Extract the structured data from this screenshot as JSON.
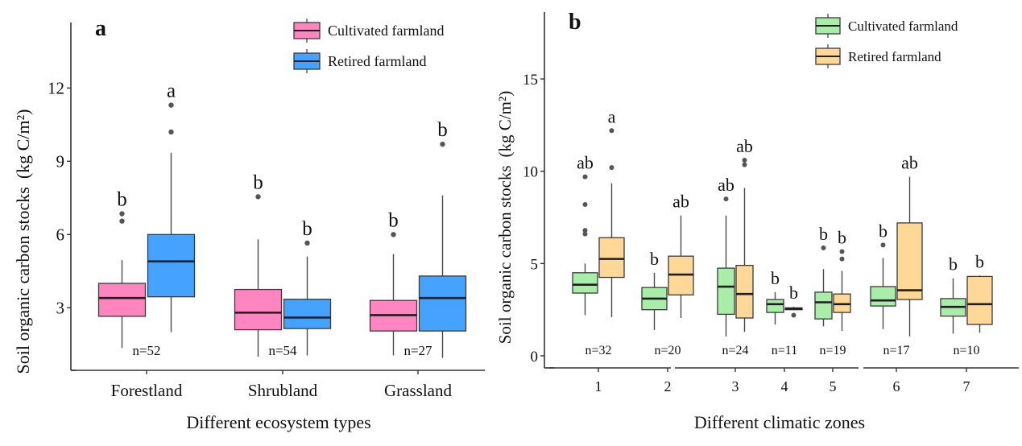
{
  "chart_data": [
    {
      "type": "boxplot",
      "panel_label": "a",
      "xlabel": "Different ecosystem types",
      "ylabel": "Soil organic carbon stocks",
      "ylabel_unit": "(kg C/m²)",
      "ylim": [
        0.5,
        15
      ],
      "yticks": [
        3,
        6,
        9,
        12
      ],
      "grid": false,
      "legend_position": "top-right",
      "series": [
        {
          "name": "Cultivated farmland",
          "color": "#FF85C0"
        },
        {
          "name": "Retired farmland",
          "color": "#45A3FF"
        }
      ],
      "categories": [
        "Forestland",
        "Shrubland",
        "Grassland"
      ],
      "groups": [
        {
          "category": "Forestland",
          "n_label": "n=52",
          "boxes": [
            {
              "series": 0,
              "whisker_low": 1.35,
              "q1": 2.65,
              "median": 3.4,
              "q3": 4.0,
              "whisker_high": 4.95,
              "outliers": [
                6.55,
                6.85
              ],
              "letter": "b"
            },
            {
              "series": 1,
              "whisker_low": 2.0,
              "q1": 3.45,
              "median": 4.9,
              "q3": 6.0,
              "whisker_high": 9.35,
              "outliers": [
                10.2,
                11.3
              ],
              "letter": "a"
            }
          ]
        },
        {
          "category": "Shrubland",
          "n_label": "n=54",
          "boxes": [
            {
              "series": 0,
              "whisker_low": 1.0,
              "q1": 2.1,
              "median": 2.8,
              "q3": 3.75,
              "whisker_high": 5.8,
              "outliers": [
                7.55
              ],
              "letter": "b"
            },
            {
              "series": 1,
              "whisker_low": 1.05,
              "q1": 2.15,
              "median": 2.6,
              "q3": 3.35,
              "whisker_high": 5.1,
              "outliers": [
                5.65
              ],
              "letter": "b"
            }
          ]
        },
        {
          "category": "Grassland",
          "n_label": "n=27",
          "boxes": [
            {
              "series": 0,
              "whisker_low": 1.05,
              "q1": 2.05,
              "median": 2.7,
              "q3": 3.3,
              "whisker_high": 5.2,
              "outliers": [
                6.0
              ],
              "letter": "b"
            },
            {
              "series": 1,
              "whisker_low": 0.95,
              "q1": 2.05,
              "median": 3.4,
              "q3": 4.3,
              "whisker_high": 7.6,
              "outliers": [
                9.7
              ],
              "letter": "b"
            }
          ]
        }
      ]
    },
    {
      "type": "boxplot",
      "panel_label": "b",
      "xlabel": "Different climatic zones",
      "ylabel": "Soil organic carbon stocks",
      "ylabel_unit": "(kg C/m²)",
      "ylim": [
        -0.7,
        18.5
      ],
      "yticks": [
        0,
        5,
        10,
        15
      ],
      "grid": false,
      "legend_position": "top-right",
      "series": [
        {
          "name": "Cultivated farmland",
          "color": "#A8EDA8"
        },
        {
          "name": "Retired farmland",
          "color": "#FFD898"
        }
      ],
      "categories": [
        "1",
        "2",
        "3",
        "4",
        "5",
        "6",
        "7"
      ],
      "axis_segments": [
        [
          "1",
          "2"
        ],
        [
          "3",
          "4",
          "5"
        ],
        [
          "6",
          "7"
        ]
      ],
      "groups": [
        {
          "category": "1",
          "n_label": "n=32",
          "boxes": [
            {
              "series": 0,
              "whisker_low": 2.2,
              "q1": 3.4,
              "median": 3.85,
              "q3": 4.5,
              "whisker_high": 5.0,
              "outliers": [
                6.6,
                6.8,
                8.2,
                9.7
              ],
              "letter": "ab"
            },
            {
              "series": 1,
              "whisker_low": 2.1,
              "q1": 4.25,
              "median": 5.25,
              "q3": 6.4,
              "whisker_high": 9.35,
              "outliers": [
                10.2,
                12.2
              ],
              "letter": "a"
            }
          ]
        },
        {
          "category": "2",
          "n_label": "n=20",
          "boxes": [
            {
              "series": 0,
              "whisker_low": 1.4,
              "q1": 2.5,
              "median": 3.1,
              "q3": 3.7,
              "whisker_high": 4.5,
              "outliers": [],
              "letter": "b"
            },
            {
              "series": 1,
              "whisker_low": 2.05,
              "q1": 3.3,
              "median": 4.4,
              "q3": 5.4,
              "whisker_high": 7.6,
              "outliers": [],
              "letter": "ab"
            }
          ]
        },
        {
          "category": "3",
          "n_label": "n=24",
          "boxes": [
            {
              "series": 0,
              "whisker_low": 1.05,
              "q1": 2.25,
              "median": 3.75,
              "q3": 4.75,
              "whisker_high": 7.6,
              "outliers": [
                8.5
              ],
              "letter": "ab"
            },
            {
              "series": 1,
              "whisker_low": 1.3,
              "q1": 2.05,
              "median": 3.35,
              "q3": 4.9,
              "whisker_high": 9.1,
              "outliers": [
                10.35,
                10.6
              ],
              "letter": "ab"
            }
          ]
        },
        {
          "category": "4",
          "n_label": "n=11",
          "boxes": [
            {
              "series": 0,
              "whisker_low": 1.7,
              "q1": 2.35,
              "median": 2.8,
              "q3": 3.05,
              "whisker_high": 3.45,
              "outliers": [],
              "letter": "b"
            },
            {
              "series": 1,
              "whisker_low": 2.5,
              "q1": 2.5,
              "median": 2.55,
              "q3": 2.6,
              "whisker_high": 2.65,
              "outliers": [
                2.2
              ],
              "letter": "b"
            }
          ]
        },
        {
          "category": "5",
          "n_label": "n=19",
          "boxes": [
            {
              "series": 0,
              "whisker_low": 1.6,
              "q1": 2.0,
              "median": 2.9,
              "q3": 3.45,
              "whisker_high": 4.7,
              "outliers": [
                5.85
              ],
              "letter": "b"
            },
            {
              "series": 1,
              "whisker_low": 1.35,
              "q1": 2.35,
              "median": 2.8,
              "q3": 3.35,
              "whisker_high": 4.6,
              "outliers": [
                5.25,
                5.65
              ],
              "letter": "b"
            }
          ]
        },
        {
          "category": "6",
          "n_label": "n=17",
          "boxes": [
            {
              "series": 0,
              "whisker_low": 1.45,
              "q1": 2.7,
              "median": 3.0,
              "q3": 3.75,
              "whisker_high": 5.3,
              "outliers": [
                6.0
              ],
              "letter": "b"
            },
            {
              "series": 1,
              "whisker_low": 1.05,
              "q1": 3.05,
              "median": 3.55,
              "q3": 7.2,
              "whisker_high": 9.7,
              "outliers": [],
              "letter": "ab"
            }
          ]
        },
        {
          "category": "7",
          "n_label": "n=10",
          "boxes": [
            {
              "series": 0,
              "whisker_low": 1.2,
              "q1": 2.15,
              "median": 2.65,
              "q3": 3.1,
              "whisker_high": 4.2,
              "outliers": [],
              "letter": "b"
            },
            {
              "series": 1,
              "whisker_low": 1.25,
              "q1": 1.7,
              "median": 2.8,
              "q3": 4.3,
              "whisker_high": 4.35,
              "outliers": [],
              "letter": "b"
            }
          ]
        }
      ]
    }
  ]
}
